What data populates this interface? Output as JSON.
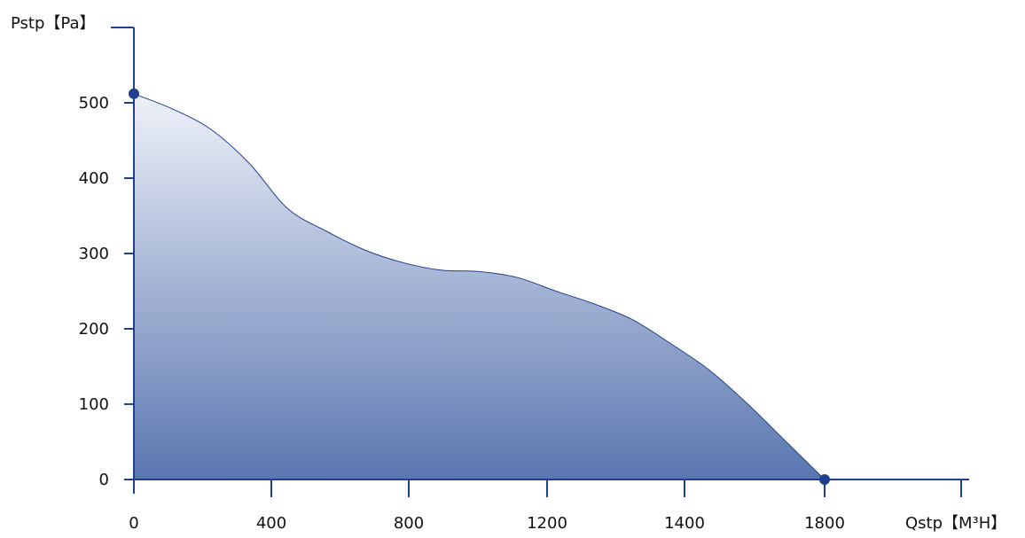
{
  "chart_data": {
    "type": "area",
    "ylabel": "Pstp【Pa】",
    "xlabel": "Qstp【M³H】",
    "x_ticks": [
      "0",
      "400",
      "800",
      "1200",
      "1400",
      "1800"
    ],
    "y_ticks": [
      0,
      100,
      200,
      300,
      400,
      500
    ],
    "ylim": [
      0,
      600
    ],
    "series": [
      {
        "x": [
          0,
          100,
          200,
          300,
          400,
          500,
          600,
          700,
          800,
          900,
          1000,
          1100,
          1200,
          1300,
          1400,
          1500,
          1600,
          1700,
          1800
        ],
        "y": [
          512,
          492,
          465,
          420,
          360,
          330,
          305,
          288,
          278,
          276,
          268,
          250,
          233,
          212,
          180,
          145,
          100,
          50,
          0
        ]
      }
    ],
    "markers": [
      {
        "x": 0,
        "y": 512
      },
      {
        "x": 1800,
        "y": 0
      }
    ],
    "grid": false,
    "colors": {
      "axis": "#1f3f8f",
      "line": "#1f3f8f",
      "marker": "#1f3f8f",
      "fill_top": "#eef1f8",
      "fill_bottom": "#5a76b0"
    }
  }
}
